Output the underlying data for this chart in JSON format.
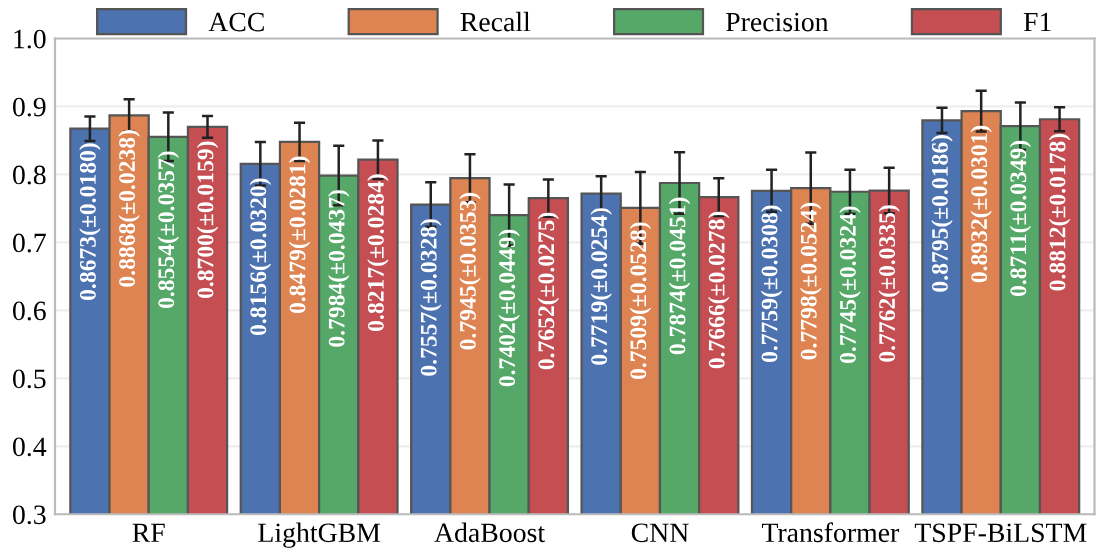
{
  "chart_data": {
    "type": "bar",
    "categories": [
      "RF",
      "LightGBM",
      "AdaBoost",
      "CNN",
      "Transformer",
      "TSPF-BiLSTM"
    ],
    "series": [
      {
        "name": "ACC",
        "color": "#4c72b0",
        "values": [
          0.8673,
          0.8156,
          0.7557,
          0.7719,
          0.7759,
          0.8795
        ],
        "errors": [
          0.018,
          0.032,
          0.0328,
          0.0254,
          0.0308,
          0.0186
        ],
        "value_labels": [
          "0.8673(±0.0180)",
          "0.8156(±0.0320)",
          "0.7557(±0.0328)",
          "0.7719(±0.0254)",
          "0.7759(±0.0308)",
          "0.8795(±0.0186)"
        ]
      },
      {
        "name": "Recall",
        "color": "#dd8452",
        "values": [
          0.8868,
          0.8479,
          0.7945,
          0.7509,
          0.7798,
          0.8932
        ],
        "errors": [
          0.0238,
          0.0281,
          0.0353,
          0.0528,
          0.0524,
          0.0301
        ],
        "value_labels": [
          "0.8868(±0.0238)",
          "0.8479(±0.0281)",
          "0.7945(±0.0353)",
          "0.7509(±0.0528)",
          "0.7798(±0.0524)",
          "0.8932(±0.0301)"
        ]
      },
      {
        "name": "Precision",
        "color": "#55a868",
        "values": [
          0.8554,
          0.7984,
          0.7402,
          0.7874,
          0.7745,
          0.8711
        ],
        "errors": [
          0.0357,
          0.0437,
          0.0449,
          0.0451,
          0.0324,
          0.0349
        ],
        "value_labels": [
          "0.8554(±0.0357)",
          "0.7984(±0.0437)",
          "0.7402(±0.0449)",
          "0.7874(±0.0451)",
          "0.7745(±0.0324)",
          "0.8711(±0.0349)"
        ]
      },
      {
        "name": "F1",
        "color": "#c44e52",
        "values": [
          0.87,
          0.8217,
          0.7652,
          0.7666,
          0.7762,
          0.8812
        ],
        "errors": [
          0.0159,
          0.0284,
          0.0275,
          0.0278,
          0.0335,
          0.0178
        ],
        "value_labels": [
          "0.8700(±0.0159)",
          "0.8217(±0.0284)",
          "0.7652(±0.0275)",
          "0.7666(±0.0278)",
          "0.7762(±0.0335)",
          "0.8812(±0.0178)"
        ]
      }
    ],
    "ylim": [
      0.3,
      1.0
    ],
    "yticks": [
      0.3,
      0.4,
      0.5,
      0.6,
      0.7,
      0.8,
      0.9,
      {
        "value": 1.0,
        "label": "1.0"
      }
    ],
    "grid": "y",
    "legend": "top"
  }
}
